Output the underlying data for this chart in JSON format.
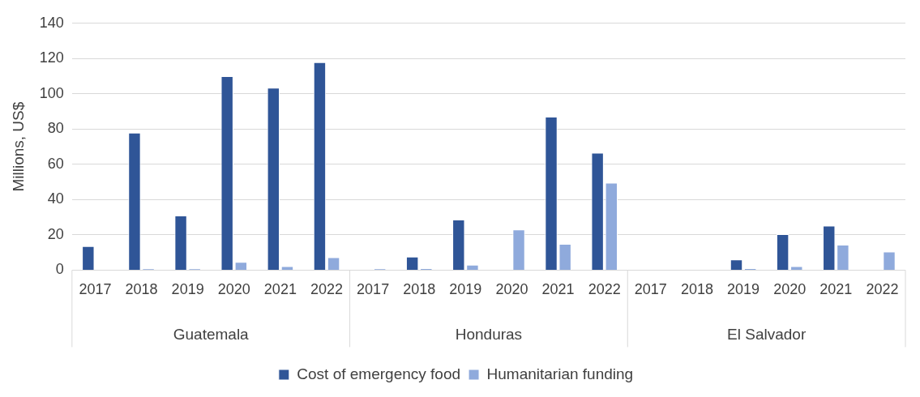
{
  "chart_data": {
    "type": "bar",
    "ylabel": "Millions, US$",
    "categories": [
      "2017",
      "2018",
      "2019",
      "2020",
      "2021",
      "2022",
      "2017",
      "2018",
      "2019",
      "2020",
      "2021",
      "2022",
      "2017",
      "2018",
      "2019",
      "2020",
      "2021",
      "2022"
    ],
    "annotations": [
      "Guatemala",
      "Honduras",
      "El Salvador"
    ],
    "series": [
      {
        "name": "Cost of emergency food",
        "color": "#2f5597",
        "values": [
          13.6,
          78,
          31,
          110,
          103.5,
          118,
          0,
          7.7,
          28.7,
          0,
          87,
          66.6,
          0,
          0,
          6.1,
          20.4,
          25.2,
          0
        ]
      },
      {
        "name": "Humanitarian funding",
        "color": "#8faadc",
        "values": [
          0,
          0.8,
          0.8,
          4.7,
          2.2,
          7.3,
          0.8,
          1,
          3,
          23,
          14.9,
          49.6,
          0,
          0,
          1,
          2.2,
          14.4,
          10.5
        ]
      }
    ],
    "ylim": [
      0,
      140
    ],
    "yticks": [
      0,
      20,
      40,
      60,
      80,
      100,
      120,
      140
    ],
    "grid": "y",
    "legend": "bottom"
  }
}
